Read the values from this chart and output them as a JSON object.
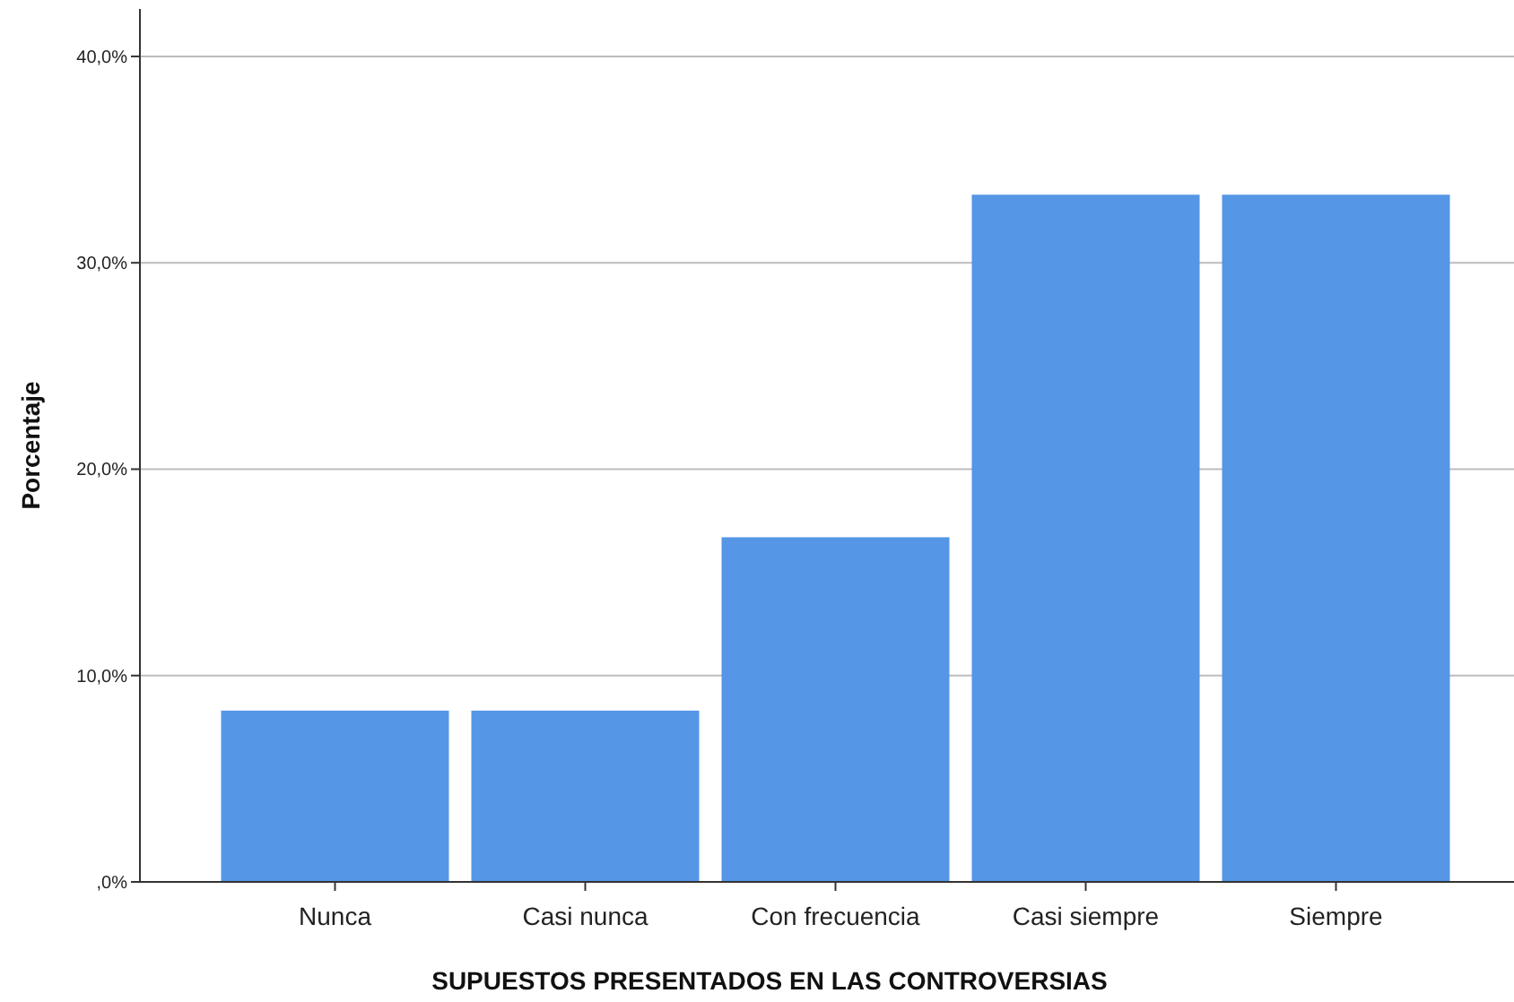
{
  "chart_data": {
    "type": "bar",
    "xlabel": "SUPUESTOS PRESENTADOS EN LAS CONTROVERSIAS",
    "ylabel": "Porcentaje",
    "categories": [
      "Nunca",
      "Casi nunca",
      "Con frecuencia",
      "Casi siempre",
      "Siempre"
    ],
    "values": [
      8.3,
      8.3,
      16.7,
      33.3,
      33.3
    ],
    "color": "#5596e6",
    "ylim": [
      0,
      42.3
    ],
    "yticks": [
      {
        "value": 0,
        "label": ",0%"
      },
      {
        "value": 10,
        "label": "10,0%"
      },
      {
        "value": 20,
        "label": "20,0%"
      },
      {
        "value": 30,
        "label": "30,0%"
      },
      {
        "value": 40,
        "label": "40,0%"
      }
    ],
    "grid": "y"
  }
}
